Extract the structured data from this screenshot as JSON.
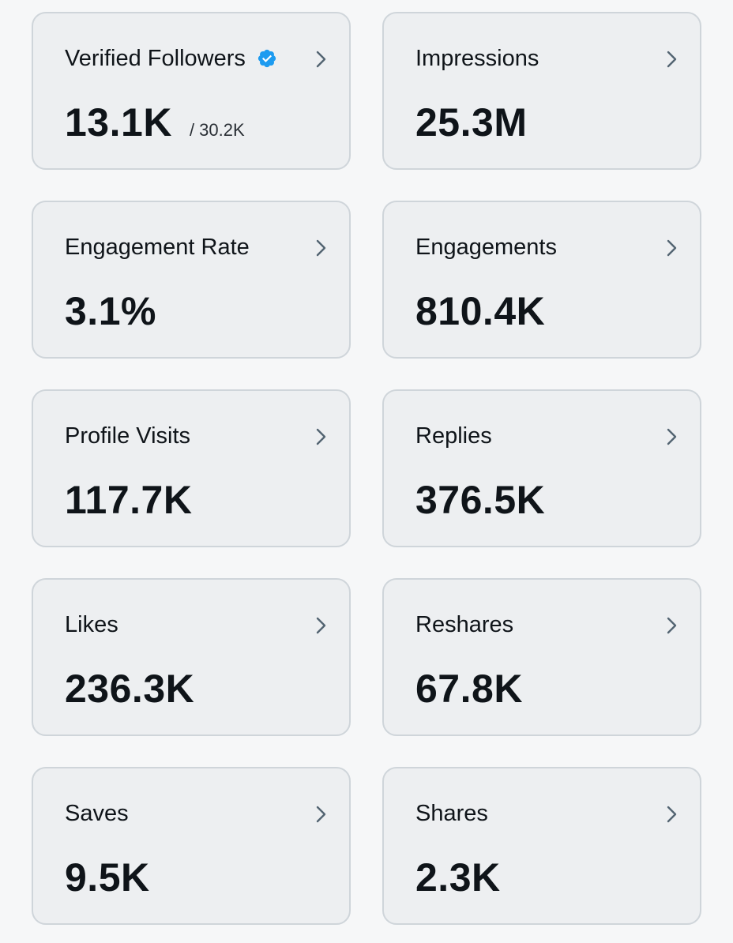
{
  "cards": [
    {
      "title": "Verified Followers",
      "value": "13.1K",
      "sub": "/ 30.2K",
      "icon": "verified-badge-icon"
    },
    {
      "title": "Impressions",
      "value": "25.3M"
    },
    {
      "title": "Engagement Rate",
      "value": "3.1%"
    },
    {
      "title": "Engagements",
      "value": "810.4K"
    },
    {
      "title": "Profile Visits",
      "value": "117.7K"
    },
    {
      "title": "Replies",
      "value": "376.5K"
    },
    {
      "title": "Likes",
      "value": "236.3K"
    },
    {
      "title": "Reshares",
      "value": "67.8K"
    },
    {
      "title": "Saves",
      "value": "9.5K"
    },
    {
      "title": "Shares",
      "value": "2.3K"
    }
  ],
  "colors": {
    "background": "#f6f7f8",
    "card": "#edeff1",
    "border": "#cfd5da",
    "text": "#0f1419",
    "chevron": "#536471",
    "verified": "#1d9bf0"
  }
}
